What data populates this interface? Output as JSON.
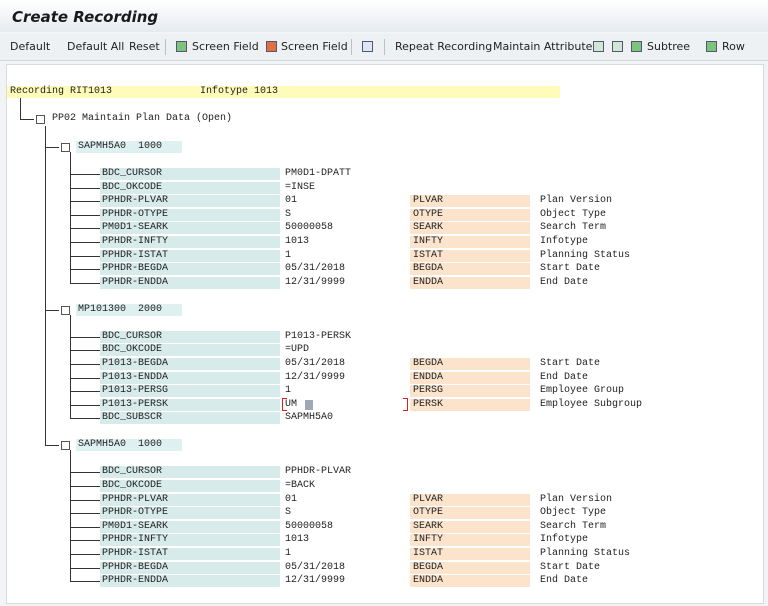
{
  "window": {
    "title": "Create Recording"
  },
  "toolbar": [
    "Default",
    "Default All",
    "Reset",
    "Screen Field",
    "Screen Field",
    "Repeat Recording",
    "Maintain Attributes",
    "Subtree",
    "Row"
  ],
  "recording": {
    "label": "Recording RIT1013",
    "infotype": "Infotype 1013"
  },
  "tree": {
    "root": "PP02 Maintain Plan Data (Open)",
    "screens": [
      {
        "program": "SAPMH5A0",
        "screen": "1000",
        "fields": [
          {
            "name": "BDC_CURSOR",
            "value": "PM0D1-DPATT"
          },
          {
            "name": "BDC_OKCODE",
            "value": "=INSE"
          },
          {
            "name": "PPHDR-PLVAR",
            "value": "01",
            "code": "PLVAR",
            "description": "Plan Version"
          },
          {
            "name": "PPHDR-OTYPE",
            "value": "S",
            "code": "OTYPE",
            "description": "Object Type"
          },
          {
            "name": "PM0D1-SEARK",
            "value": "50000058",
            "code": "SEARK",
            "description": "Search Term"
          },
          {
            "name": "PPHDR-INFTY",
            "value": "1013",
            "code": "INFTY",
            "description": "Infotype"
          },
          {
            "name": "PPHDR-ISTAT",
            "value": "1",
            "code": "ISTAT",
            "description": "Planning Status"
          },
          {
            "name": "PPHDR-BEGDA",
            "value": "05/31/2018",
            "code": "BEGDA",
            "description": "Start Date"
          },
          {
            "name": "PPHDR-ENDDA",
            "value": "12/31/9999",
            "code": "ENDDA",
            "description": "End Date"
          }
        ]
      },
      {
        "program": "MP101300",
        "screen": "2000",
        "fields": [
          {
            "name": "BDC_CURSOR",
            "value": "P1013-PERSK"
          },
          {
            "name": "BDC_OKCODE",
            "value": "=UPD"
          },
          {
            "name": "P1013-BEGDA",
            "value": "05/31/2018",
            "code": "BEGDA",
            "description": "Start Date"
          },
          {
            "name": "P1013-ENDDA",
            "value": "12/31/9999",
            "code": "ENDDA",
            "description": "End Date"
          },
          {
            "name": "P1013-PERSG",
            "value": "1",
            "code": "PERSG",
            "description": "Employee Group"
          },
          {
            "name": "P1013-PERSK",
            "value": "UM",
            "code": "PERSK",
            "description": "Employee Subgroup"
          },
          {
            "name": "BDC_SUBSCR",
            "value": "SAPMH5A0"
          }
        ]
      },
      {
        "program": "SAPMH5A0",
        "screen": "1000",
        "fields": [
          {
            "name": "BDC_CURSOR",
            "value": "PPHDR-PLVAR"
          },
          {
            "name": "BDC_OKCODE",
            "value": "=BACK"
          },
          {
            "name": "PPHDR-PLVAR",
            "value": "01",
            "code": "PLVAR",
            "description": "Plan Version"
          },
          {
            "name": "PPHDR-OTYPE",
            "value": "S",
            "code": "OTYPE",
            "description": "Object Type"
          },
          {
            "name": "PM0D1-SEARK",
            "value": "50000058",
            "code": "SEARK",
            "description": "Search Term"
          },
          {
            "name": "PPHDR-INFTY",
            "value": "1013",
            "code": "INFTY",
            "description": "Infotype"
          },
          {
            "name": "PPHDR-ISTAT",
            "value": "1",
            "code": "ISTAT",
            "description": "Planning Status"
          },
          {
            "name": "PPHDR-BEGDA",
            "value": "05/31/2018",
            "code": "BEGDA",
            "description": "Start Date"
          },
          {
            "name": "PPHDR-ENDDA",
            "value": "12/31/9999",
            "code": "ENDDA",
            "description": "End Date"
          }
        ]
      }
    ]
  }
}
